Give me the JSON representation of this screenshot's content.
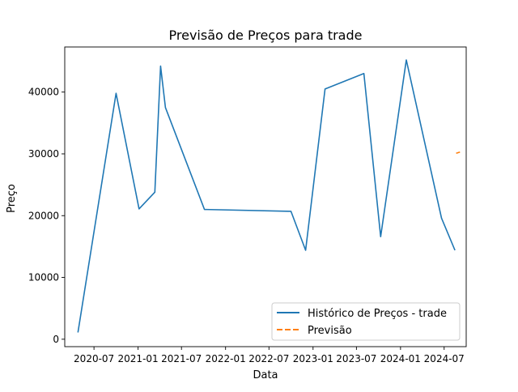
{
  "chart_data": {
    "type": "line",
    "title": "Previsão de Preços para trade",
    "xlabel": "Data",
    "ylabel": "Preço",
    "x_ticks": [
      "2020-07",
      "2021-01",
      "2021-07",
      "2022-01",
      "2022-07",
      "2023-01",
      "2023-07",
      "2024-01",
      "2024-07"
    ],
    "y_ticks": [
      0,
      10000,
      20000,
      30000,
      40000
    ],
    "xlim": [
      "2020-03-01",
      "2024-10-01"
    ],
    "ylim": [
      -1200,
      47300
    ],
    "grid": false,
    "legend_position": "lower-right",
    "colors": {
      "historico": "#1f77b4",
      "previsao": "#ff7f0e"
    },
    "series": [
      {
        "name": "Histórico de Preços - trade",
        "style": "solid",
        "x": [
          "2020-04-25",
          "2020-10-01",
          "2021-01-05",
          "2021-03-12",
          "2021-04-05",
          "2021-04-25",
          "2021-10-05",
          "2022-10-01",
          "2022-12-01",
          "2023-02-20",
          "2023-08-01",
          "2023-10-10",
          "2024-01-25",
          "2024-06-20",
          "2024-08-15"
        ],
        "y": [
          1100,
          39800,
          21100,
          23800,
          44200,
          37500,
          21000,
          20700,
          14400,
          40500,
          43000,
          16600,
          45200,
          19600,
          14400
        ]
      },
      {
        "name": "Previsão",
        "style": "dashed",
        "x": [
          "2024-08-20",
          "2024-09-05"
        ],
        "y": [
          30100,
          30300
        ]
      }
    ]
  }
}
